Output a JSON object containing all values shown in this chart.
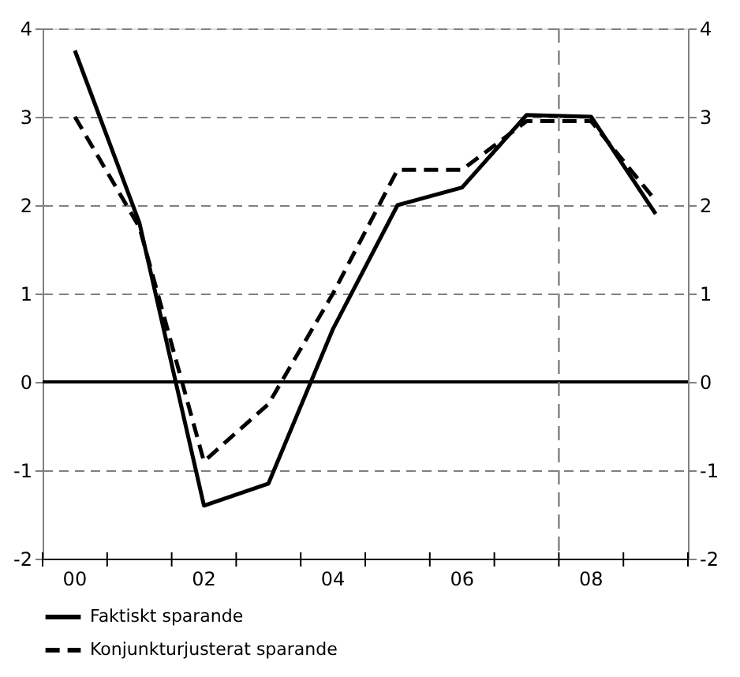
{
  "chart_data": {
    "type": "line",
    "x": [
      2000,
      2001,
      2002,
      2003,
      2004,
      2005,
      2006,
      2007,
      2008,
      2009
    ],
    "series": [
      {
        "name": "Faktiskt sparande",
        "color": "#000000",
        "line_style": "solid",
        "values": [
          3.75,
          1.8,
          -1.4,
          -1.15,
          0.6,
          2.0,
          2.2,
          3.02,
          3.0,
          1.9
        ]
      },
      {
        "name": "Konjunkturjusterat sparande",
        "color": "#000000",
        "line_style": "dashed",
        "values": [
          3.0,
          1.75,
          -0.9,
          -0.25,
          1.0,
          2.4,
          2.4,
          2.95,
          2.95,
          2.05
        ]
      }
    ],
    "xlim": [
      1999.5,
      2009.5
    ],
    "xticks": [
      {
        "value": 1999.5,
        "label": null
      },
      {
        "value": 2000.5,
        "label": null
      },
      {
        "value": 2001.5,
        "label": null
      },
      {
        "value": 2002.5,
        "label": null
      },
      {
        "value": 2003.5,
        "label": null
      },
      {
        "value": 2004.5,
        "label": null
      },
      {
        "value": 2005.5,
        "label": null
      },
      {
        "value": 2006.5,
        "label": null
      },
      {
        "value": 2007.5,
        "label": null
      },
      {
        "value": 2008.5,
        "label": null
      },
      {
        "value": 2009.5,
        "label": null
      },
      {
        "value": 2000,
        "label": "00"
      },
      {
        "value": 2002,
        "label": "02"
      },
      {
        "value": 2004,
        "label": "04"
      },
      {
        "value": 2006,
        "label": "06"
      },
      {
        "value": 2008,
        "label": "08"
      }
    ],
    "ylim": [
      -2,
      4
    ],
    "yticks": [
      -2,
      -1,
      0,
      1,
      2,
      3,
      4
    ],
    "y2lim": [
      -2,
      4
    ],
    "y2ticks": [
      -2,
      -1,
      0,
      1,
      2,
      3,
      4
    ],
    "grid": "y",
    "ref_lines": [
      {
        "axis": "y",
        "value": 0,
        "color": "#000000",
        "line_style": "solid"
      },
      {
        "axis": "x",
        "value": 2007.5,
        "color": "#808080",
        "line_style": "dashed"
      }
    ],
    "legend": "bottom left"
  }
}
